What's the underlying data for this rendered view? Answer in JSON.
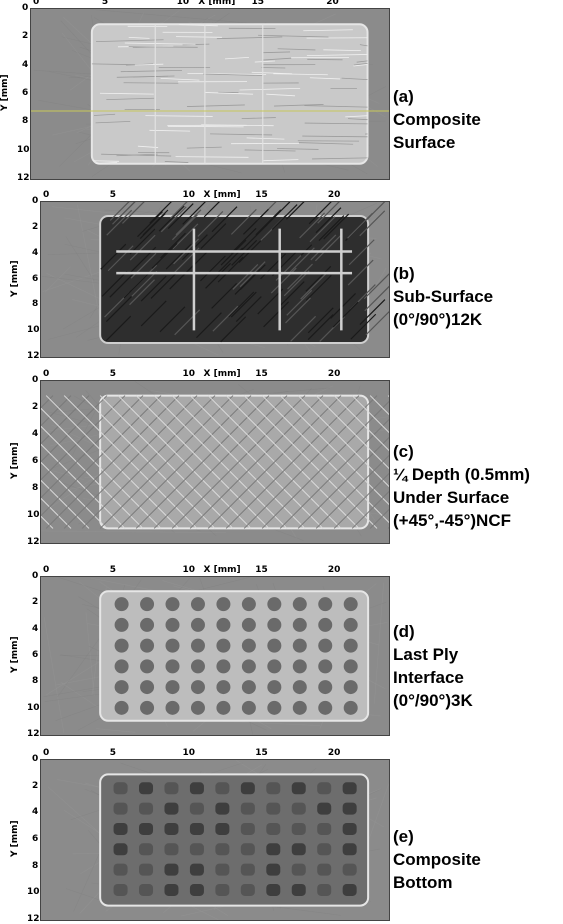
{
  "panels": [
    {
      "id": "a",
      "xlabel": "X [mm]",
      "ylabel": "Y [mm]",
      "xticks": [
        "0",
        "5",
        "10",
        "15",
        "20"
      ],
      "yticks": [
        "0",
        "2",
        "4",
        "6",
        "8",
        "10",
        "12"
      ],
      "caption": [
        "(a)",
        "Composite",
        "Surface"
      ],
      "style": "light-surface",
      "guide_color": "#c8c85a"
    },
    {
      "id": "b",
      "xlabel": "X [mm]",
      "ylabel": "Y [mm]",
      "xticks": [
        "0",
        "5",
        "10",
        "15",
        "20"
      ],
      "yticks": [
        "0",
        "2",
        "4",
        "6",
        "8",
        "10",
        "12"
      ],
      "caption": [
        "(b)",
        "Sub-Surface",
        "(0°/90°)12K"
      ],
      "style": "dark-subsurface"
    },
    {
      "id": "c",
      "xlabel": "X [mm]",
      "ylabel": "Y [mm]",
      "xticks": [
        "0",
        "5",
        "10",
        "15",
        "20"
      ],
      "yticks": [
        "0",
        "2",
        "4",
        "6",
        "8",
        "10",
        "12"
      ],
      "caption": [
        "(c)",
        "¼ Depth (0.5mm)",
        "Under Surface",
        " (+45°,-45°)NCF"
      ],
      "style": "crosshatch"
    },
    {
      "id": "d",
      "xlabel": "X [mm]",
      "ylabel": "Y [mm]",
      "xticks": [
        "0",
        "5",
        "10",
        "15",
        "20"
      ],
      "yticks": [
        "0",
        "2",
        "4",
        "6",
        "8",
        "10",
        "12"
      ],
      "caption": [
        "(d)",
        "Last Ply",
        "Interface",
        "(0°/90°)3K"
      ],
      "style": "holes"
    },
    {
      "id": "e",
      "xlabel": "",
      "ylabel": "Y [mm]",
      "xticks": [
        "0",
        "5",
        "10",
        "15",
        "20"
      ],
      "yticks": [
        "0",
        "2",
        "4",
        "6",
        "8",
        "10",
        "12"
      ],
      "caption": [
        "(e)",
        "Composite",
        "Bottom"
      ],
      "style": "dark-grid"
    }
  ]
}
